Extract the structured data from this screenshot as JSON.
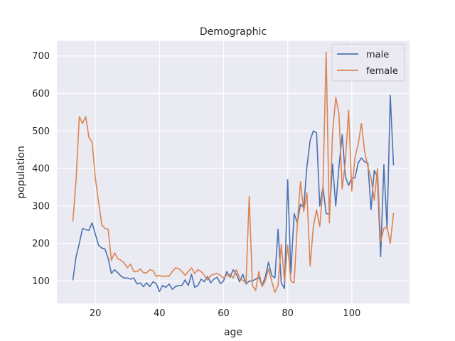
{
  "chart_data": {
    "type": "line",
    "title": "Demographic",
    "xlabel": "age",
    "ylabel": "population",
    "xlim": [
      8,
      118
    ],
    "ylim": [
      40,
      740
    ],
    "xticks": [
      20,
      40,
      60,
      80,
      100
    ],
    "yticks": [
      100,
      200,
      300,
      400,
      500,
      600,
      700
    ],
    "grid": true,
    "legend_position": "top-right",
    "x": [
      13,
      14,
      15,
      16,
      17,
      18,
      19,
      20,
      21,
      22,
      23,
      24,
      25,
      26,
      27,
      28,
      29,
      30,
      31,
      32,
      33,
      34,
      35,
      36,
      37,
      38,
      39,
      40,
      41,
      42,
      43,
      44,
      45,
      46,
      47,
      48,
      49,
      50,
      51,
      52,
      53,
      54,
      55,
      56,
      57,
      58,
      59,
      60,
      61,
      62,
      63,
      64,
      65,
      66,
      67,
      68,
      69,
      70,
      71,
      72,
      73,
      74,
      75,
      76,
      77,
      78,
      79,
      80,
      81,
      82,
      83,
      84,
      85,
      86,
      87,
      88,
      89,
      90,
      91,
      92,
      93,
      94,
      95,
      96,
      97,
      98,
      99,
      100,
      101,
      102,
      103,
      104,
      105,
      106,
      107,
      108,
      109,
      110,
      111,
      112,
      113
    ],
    "series": [
      {
        "name": "male",
        "color": "#4c72b0",
        "values": [
          103,
          165,
          200,
          240,
          237,
          235,
          255,
          225,
          195,
          188,
          185,
          160,
          120,
          130,
          122,
          113,
          108,
          108,
          105,
          108,
          92,
          95,
          85,
          95,
          85,
          98,
          93,
          72,
          88,
          83,
          92,
          78,
          85,
          88,
          88,
          103,
          88,
          118,
          83,
          88,
          105,
          98,
          112,
          95,
          105,
          110,
          93,
          100,
          125,
          110,
          130,
          118,
          98,
          118,
          92,
          100,
          100,
          105,
          110,
          88,
          110,
          150,
          115,
          108,
          238,
          95,
          80,
          370,
          120,
          280,
          255,
          305,
          295,
          405,
          475,
          500,
          495,
          300,
          350,
          280,
          278,
          412,
          300,
          405,
          490,
          378,
          355,
          375,
          375,
          415,
          428,
          418,
          415,
          290,
          395,
          378,
          165,
          410,
          238,
          595,
          410
        ]
      },
      {
        "name": "female",
        "color": "#dd8452",
        "values": [
          260,
          370,
          538,
          520,
          538,
          483,
          470,
          375,
          310,
          250,
          240,
          238,
          155,
          175,
          160,
          155,
          148,
          135,
          145,
          125,
          125,
          132,
          122,
          122,
          130,
          128,
          112,
          115,
          112,
          113,
          113,
          125,
          135,
          133,
          125,
          115,
          125,
          135,
          120,
          130,
          125,
          115,
          102,
          115,
          118,
          120,
          115,
          108,
          115,
          118,
          108,
          130,
          108,
          102,
          95,
          325,
          88,
          75,
          125,
          85,
          100,
          132,
          100,
          70,
          88,
          198,
          100,
          195,
          100,
          95,
          250,
          365,
          285,
          335,
          140,
          245,
          290,
          245,
          350,
          710,
          255,
          495,
          590,
          545,
          345,
          420,
          555,
          340,
          430,
          465,
          520,
          445,
          405,
          375,
          315,
          400,
          205,
          240,
          245,
          200,
          280
        ]
      }
    ]
  }
}
